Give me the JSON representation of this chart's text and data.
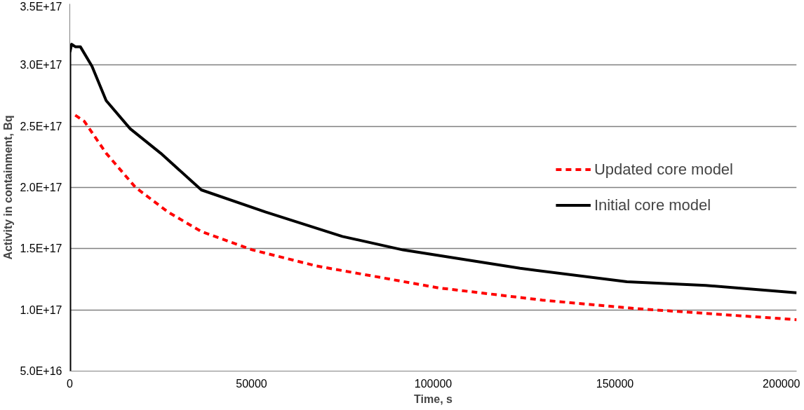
{
  "chart_data": {
    "type": "line",
    "xlabel": "Time, s",
    "ylabel": "Activity in containment, Bq",
    "xlim": [
      0,
      200000
    ],
    "xticks": [
      0,
      50000,
      100000,
      150000,
      200000
    ],
    "ylim": [
      5e+16,
      3.5e+17
    ],
    "yticks": [
      {
        "value": 5e+16,
        "label": "5.0E+16"
      },
      {
        "value": 1e+17,
        "label": "1.0E+17"
      },
      {
        "value": 1.5e+17,
        "label": "1.5E+17"
      },
      {
        "value": 2e+17,
        "label": "2.0E+17"
      },
      {
        "value": 2.5e+17,
        "label": "2.5E+17"
      },
      {
        "value": 3e+17,
        "label": "3.0E+17"
      },
      {
        "value": 3.5e+17,
        "label": "3.5E+17"
      }
    ],
    "grid": "y",
    "legend": "right",
    "marker": "none",
    "series": [
      {
        "name": "Updated core model",
        "color": "#ff0000",
        "line_style": "dashed",
        "x": [
          1500,
          4000,
          10000,
          18100,
          27000,
          36200,
          50300,
          67700,
          101400,
          130000,
          156200,
          200000
        ],
        "values": [
          2.59e+17,
          2.54e+17,
          2.28e+17,
          2e+17,
          1.8e+17,
          1.64e+17,
          1.49e+17,
          1.36e+17,
          1.18e+17,
          1.08e+17,
          1.01e+17,
          9.2e+16
        ]
      },
      {
        "name": "Initial core model",
        "color": "#000000",
        "line_style": "solid",
        "x": [
          0,
          0,
          500,
          1500,
          2900,
          6100,
          10000,
          16600,
          25000,
          36200,
          53800,
          75000,
          91700,
          123900,
          153300,
          175000,
          200000
        ],
        "values": [
          5e+16,
          3.1e+17,
          3.17e+17,
          3.15e+17,
          3.15e+17,
          2.99e+17,
          2.71e+17,
          2.48e+17,
          2.28e+17,
          1.98e+17,
          1.8e+17,
          1.6e+17,
          1.49e+17,
          1.34e+17,
          1.23e+17,
          1.2e+17,
          1.14e+17
        ]
      }
    ]
  }
}
